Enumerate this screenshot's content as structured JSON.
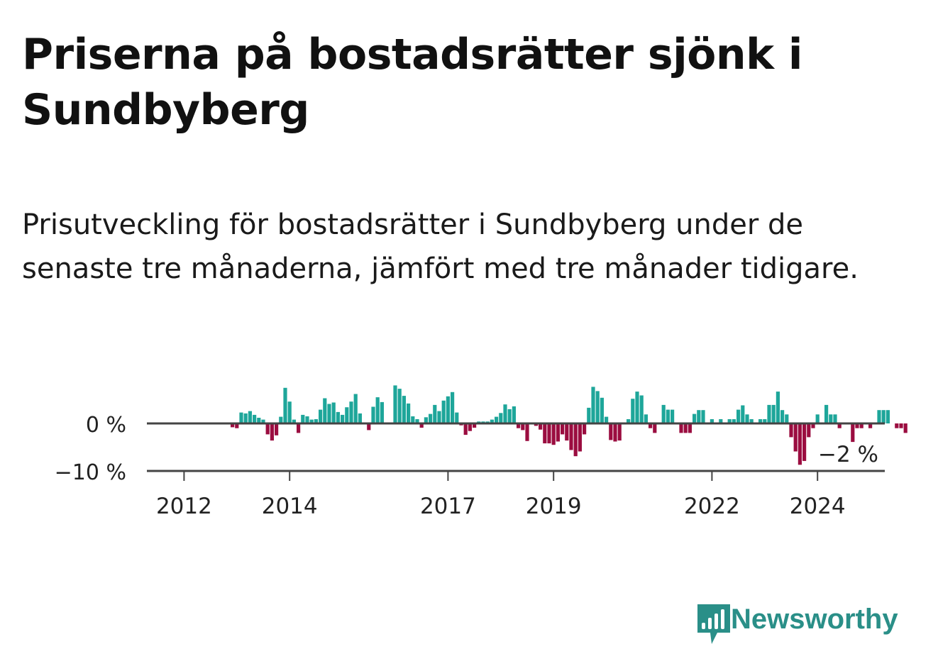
{
  "title": "Priserna på bostadsrätter sjönk i Sundbyberg",
  "subtitle": "Prisutveckling för bostadsrätter i Sundbyberg under de senaste tre månaderna, jämfört med tre månader tidigare.",
  "brand": {
    "name": "Newsworthy",
    "icon": "newsworthy-logo-icon",
    "color": "#2a8f88"
  },
  "colors": {
    "positive": "#1ea69a",
    "negative": "#9b0d40",
    "axis": "#444444"
  },
  "chart_data": {
    "type": "bar",
    "title": "Priserna på bostadsrätter sjönk i Sundbyberg",
    "xlabel": "",
    "ylabel": "",
    "ylim": [
      -10,
      10
    ],
    "yticks": [
      {
        "value": 0,
        "label": "0 %"
      },
      {
        "value": -10,
        "label": "−10 %"
      }
    ],
    "xticks": [
      {
        "value": 2012,
        "label": "2012"
      },
      {
        "value": 2014,
        "label": "2014"
      },
      {
        "value": 2017,
        "label": "2017"
      },
      {
        "value": 2019,
        "label": "2019"
      },
      {
        "value": 2022,
        "label": "2022"
      },
      {
        "value": 2024,
        "label": "2024"
      }
    ],
    "start": [
      2011,
      1
    ],
    "unit": "%",
    "end_label": "−2 %",
    "values": [
      0,
      0,
      0,
      0,
      0,
      0,
      0,
      0,
      0,
      0,
      0,
      0,
      0,
      0,
      0,
      0,
      0,
      0,
      0,
      0,
      0,
      0,
      0,
      -0.8,
      -1.0,
      2.3,
      2.1,
      2.6,
      1.8,
      1.2,
      0.8,
      -2.3,
      -3.6,
      -2.5,
      1.4,
      7.5,
      4.6,
      0.8,
      -2.0,
      1.8,
      1.5,
      0.8,
      0.9,
      2.9,
      5.3,
      4.1,
      4.4,
      2.4,
      1.8,
      3.4,
      4.6,
      6.2,
      2.1,
      0,
      -1.4,
      3.5,
      5.5,
      4.5,
      0,
      0,
      8.0,
      7.3,
      5.8,
      4.2,
      1.5,
      0.9,
      -0.9,
      1.3,
      2.0,
      3.9,
      2.6,
      4.8,
      5.7,
      6.6,
      2.3,
      -0.4,
      -2.4,
      -1.6,
      -0.9,
      0.4,
      0.4,
      0.4,
      0.8,
      1.4,
      2.2,
      4.0,
      3.0,
      3.6,
      -1.0,
      -1.4,
      -3.7,
      0.2,
      -0.5,
      -1.3,
      -4.2,
      -4.2,
      -4.5,
      -3.8,
      -2.3,
      -3.6,
      -5.6,
      -6.9,
      -5.9,
      -2.3,
      3.3,
      7.7,
      6.8,
      5.4,
      1.4,
      -3.5,
      -3.8,
      -3.6,
      0,
      0.9,
      5.2,
      6.7,
      5.9,
      1.9,
      -1.0,
      -2.0,
      0,
      3.9,
      2.9,
      2.9,
      0,
      -2.0,
      -2.0,
      -2.0,
      2.0,
      2.8,
      2.8,
      0,
      0.9,
      0,
      0.9,
      0,
      0.9,
      0.9,
      2.9,
      3.8,
      1.9,
      0.9,
      0,
      0.9,
      0.9,
      3.9,
      3.9,
      6.7,
      2.8,
      1.9,
      -2.9,
      -5.9,
      -8.7,
      -7.9,
      -2.9,
      -1.0,
      1.9,
      0,
      3.9,
      1.9,
      1.9,
      -1.0,
      0,
      0,
      -3.9,
      -1.0,
      -1.0,
      0,
      -1.0,
      0,
      2.8,
      2.8,
      2.8,
      0,
      -1.0,
      -1.0,
      -2.0
    ]
  }
}
